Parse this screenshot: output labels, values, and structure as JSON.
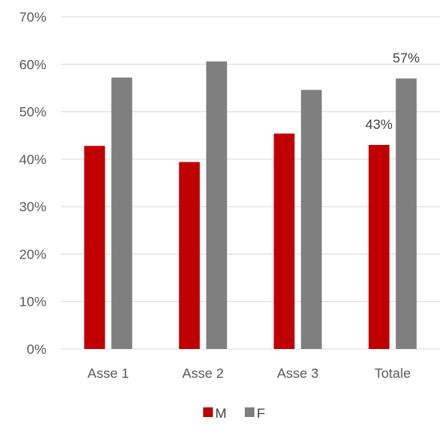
{
  "chart_data": {
    "type": "bar",
    "categories": [
      "Asse 1",
      "Asse 2",
      "Asse 3",
      "Totale"
    ],
    "series": [
      {
        "name": "M",
        "color": "#c00000",
        "values": [
          0.428,
          0.394,
          0.454,
          0.43
        ]
      },
      {
        "name": "F",
        "color": "#7f7f7f",
        "values": [
          0.572,
          0.606,
          0.546,
          0.57
        ]
      }
    ],
    "ylim": [
      0,
      0.7
    ],
    "y_ticks": [
      0,
      0.1,
      0.2,
      0.3,
      0.4,
      0.5,
      0.6,
      0.7
    ],
    "y_tick_labels": [
      "0%",
      "10%",
      "20%",
      "30%",
      "40%",
      "50%",
      "60%",
      "70%"
    ],
    "data_labels": [
      {
        "series": 0,
        "category": 3,
        "text": "43%"
      },
      {
        "series": 1,
        "category": 3,
        "text": "57%"
      }
    ],
    "grid": true,
    "gridline_color": "#d9d9d9",
    "legend": "bottom",
    "title": "",
    "xlabel": "",
    "ylabel": ""
  }
}
